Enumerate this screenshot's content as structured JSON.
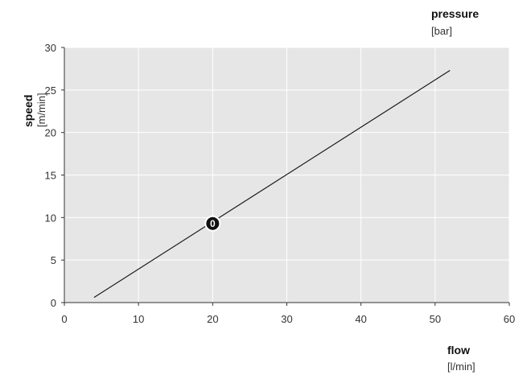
{
  "chart_data": {
    "type": "line",
    "xlabel": "flow",
    "xunit": "[l/min]",
    "ylabel": "speed",
    "yunit": "[m/min]",
    "secondary_label": "pressure",
    "secondary_unit": "[bar]",
    "xlim": [
      0,
      60
    ],
    "ylim": [
      0,
      30
    ],
    "xticks": [
      0,
      10,
      20,
      30,
      40,
      50,
      60
    ],
    "yticks": [
      0,
      5,
      10,
      15,
      20,
      25,
      30
    ],
    "grid": true,
    "series": [
      {
        "points": [
          [
            4,
            0.6
          ],
          [
            52,
            27.3
          ]
        ]
      }
    ],
    "annotations": [
      {
        "label": "0",
        "x": 20,
        "y": 9.3
      }
    ],
    "colors": {
      "plot_bg": "#e6e6e6",
      "grid": "#ffffff",
      "line": "#1a1a1a",
      "marker": "#111111"
    }
  }
}
